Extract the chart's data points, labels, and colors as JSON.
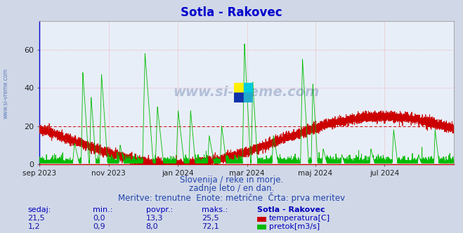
{
  "title": "Sotla - Rakovec",
  "title_color": "#0000cc",
  "title_fontsize": 12,
  "bg_color": "#d0d8e8",
  "plot_bg_color": "#e8eef8",
  "grid_color": "#ee9999",
  "grid_linestyle": ":",
  "y_min": 0,
  "y_max": 75,
  "y_ticks": [
    0,
    20,
    40,
    60
  ],
  "x_tick_labels": [
    "sep 2023",
    "nov 2023",
    "jan 2024",
    "mar 2024",
    "maj 2024",
    "jul 2024"
  ],
  "x_tick_positions": [
    0,
    61,
    122,
    183,
    243,
    304
  ],
  "temp_color": "#cc0000",
  "flow_color": "#00bb00",
  "dashed_line_y": 20,
  "dashed_line_color": "#cc0000",
  "watermark_text": "www.si-vreme.com",
  "watermark_color": "#1a3a7a",
  "watermark_alpha": 0.25,
  "subtitle1": "Slovenija / reke in morje.",
  "subtitle2": "zadnje leto / en dan.",
  "subtitle3": "Meritve: trenutne  Enote: metrične  Črta: prva meritev",
  "subtitle_color": "#2244aa",
  "subtitle_fontsize": 8.5,
  "footer_label_color": "#0000bb",
  "footer_value_color": "#1111aa",
  "footer_headers": [
    "sedaj:",
    "min.:",
    "povpr.:",
    "maks.:",
    "Sotla - Rakovec"
  ],
  "footer_row1": [
    "21,5",
    "0,0",
    "13,3",
    "25,5"
  ],
  "footer_row2": [
    "1,2",
    "0,9",
    "8,0",
    "72,1"
  ],
  "legend_temp": "temperatura[C]",
  "legend_flow": "pretok[m3/s]",
  "axis_left_color": "#0000cc",
  "axis_bottom_color": "#cc0000"
}
